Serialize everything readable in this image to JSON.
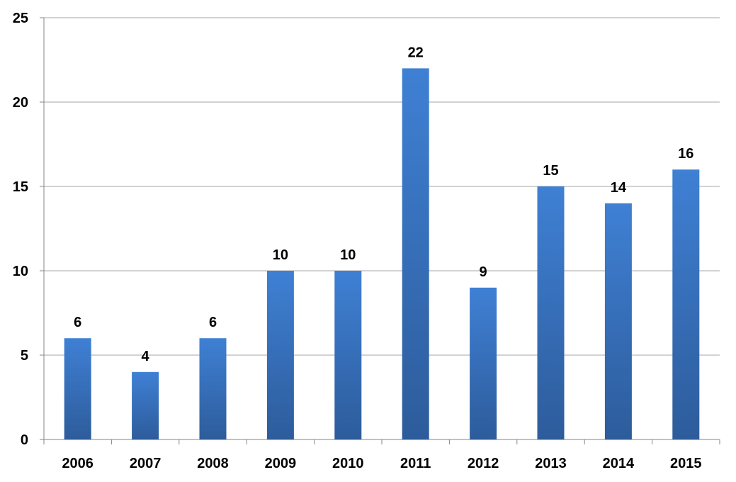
{
  "chart_data": {
    "type": "bar",
    "categories": [
      "2006",
      "2007",
      "2008",
      "2009",
      "2010",
      "2011",
      "2012",
      "2013",
      "2014",
      "2015"
    ],
    "values": [
      6,
      4,
      6,
      10,
      10,
      22,
      9,
      15,
      14,
      16
    ],
    "data_labels": [
      "6",
      "4",
      "6",
      "10",
      "10",
      "22",
      "9",
      "15",
      "14",
      "16"
    ],
    "y_ticks": [
      "0",
      "5",
      "10",
      "15",
      "20",
      "25"
    ],
    "ylim": [
      0,
      25
    ],
    "grid": true,
    "legend": "none",
    "colors": {
      "bar_top": "#3f80d4",
      "bar_bottom": "#2d5c9b"
    }
  }
}
